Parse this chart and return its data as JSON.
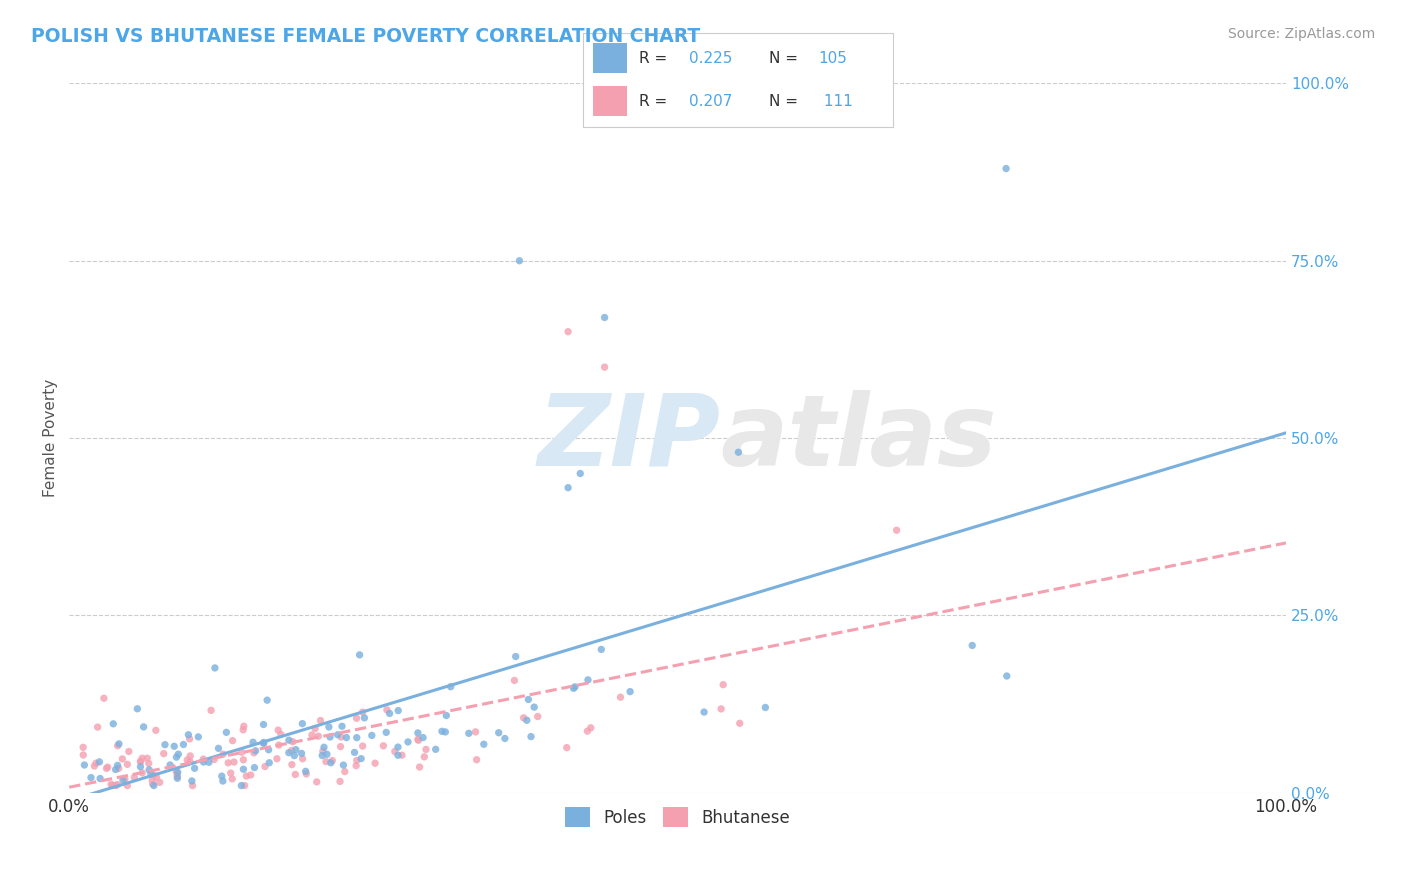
{
  "title": "POLISH VS BHUTANESE FEMALE POVERTY CORRELATION CHART",
  "source": "Source: ZipAtlas.com",
  "ylabel": "Female Poverty",
  "xlim": [
    0,
    1
  ],
  "ylim": [
    0,
    1
  ],
  "xtick_labels": [
    "0.0%",
    "100.0%"
  ],
  "ytick_labels": [
    "0.0%",
    "25.0%",
    "50.0%",
    "75.0%",
    "100.0%"
  ],
  "ytick_positions": [
    0.0,
    0.25,
    0.5,
    0.75,
    1.0
  ],
  "poles_color": "#7ab0de",
  "bhutanese_color": "#f4a0b0",
  "poles_R": 0.225,
  "poles_N": 105,
  "bhutanese_R": 0.207,
  "bhutanese_N": 111,
  "watermark_zip": "ZIP",
  "watermark_atlas": "atlas",
  "background_color": "#ffffff",
  "grid_color": "#cccccc"
}
